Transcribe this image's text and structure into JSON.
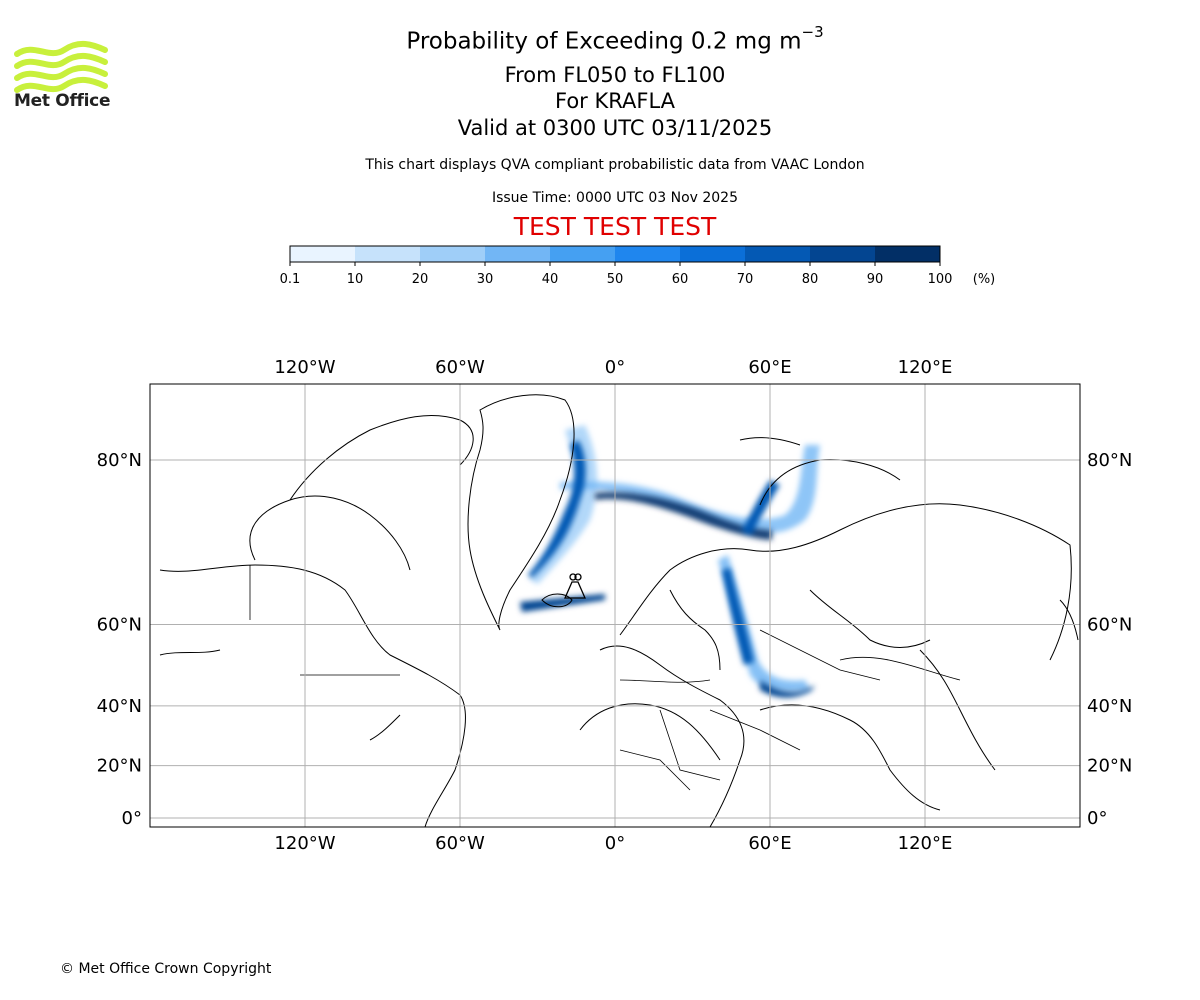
{
  "header": {
    "title_main": "Probability of Exceeding 0.2 mg m",
    "title_exponent": "−3",
    "flight_levels": "From FL050 to FL100",
    "volcano": "For KRAFLA",
    "validity": "Valid at 0300 UTC 03/11/2025",
    "description": "This chart displays QVA compliant probabilistic data from VAAC London",
    "issue_time": "Issue Time: 0000 UTC 03 Nov 2025",
    "test_banner": "TEST TEST TEST"
  },
  "logo": {
    "text": "Met Office",
    "color": "#c8f03c"
  },
  "colorbar": {
    "unit_label": "(%)",
    "ticks": [
      "0.1",
      "10",
      "20",
      "30",
      "40",
      "50",
      "60",
      "70",
      "80",
      "90",
      "100"
    ],
    "colors": [
      "#e9f4ff",
      "#c6e2fb",
      "#9fcef8",
      "#72b6f5",
      "#45a0f2",
      "#1f86ee",
      "#0b6fd8",
      "#0459b4",
      "#034591",
      "#022f66"
    ]
  },
  "map": {
    "lon_labels": [
      "120°W",
      "60°W",
      "0°",
      "60°E",
      "120°E"
    ],
    "lon_values": [
      -120,
      -60,
      0,
      60,
      120
    ],
    "lat_labels": [
      "80°N",
      "60°N",
      "40°N",
      "20°N",
      "0°"
    ],
    "lat_values": [
      80,
      60,
      40,
      20,
      0
    ],
    "volcano_marker": "volcano-symbol"
  },
  "footer": {
    "copyright": "© Met Office Crown Copyright"
  }
}
